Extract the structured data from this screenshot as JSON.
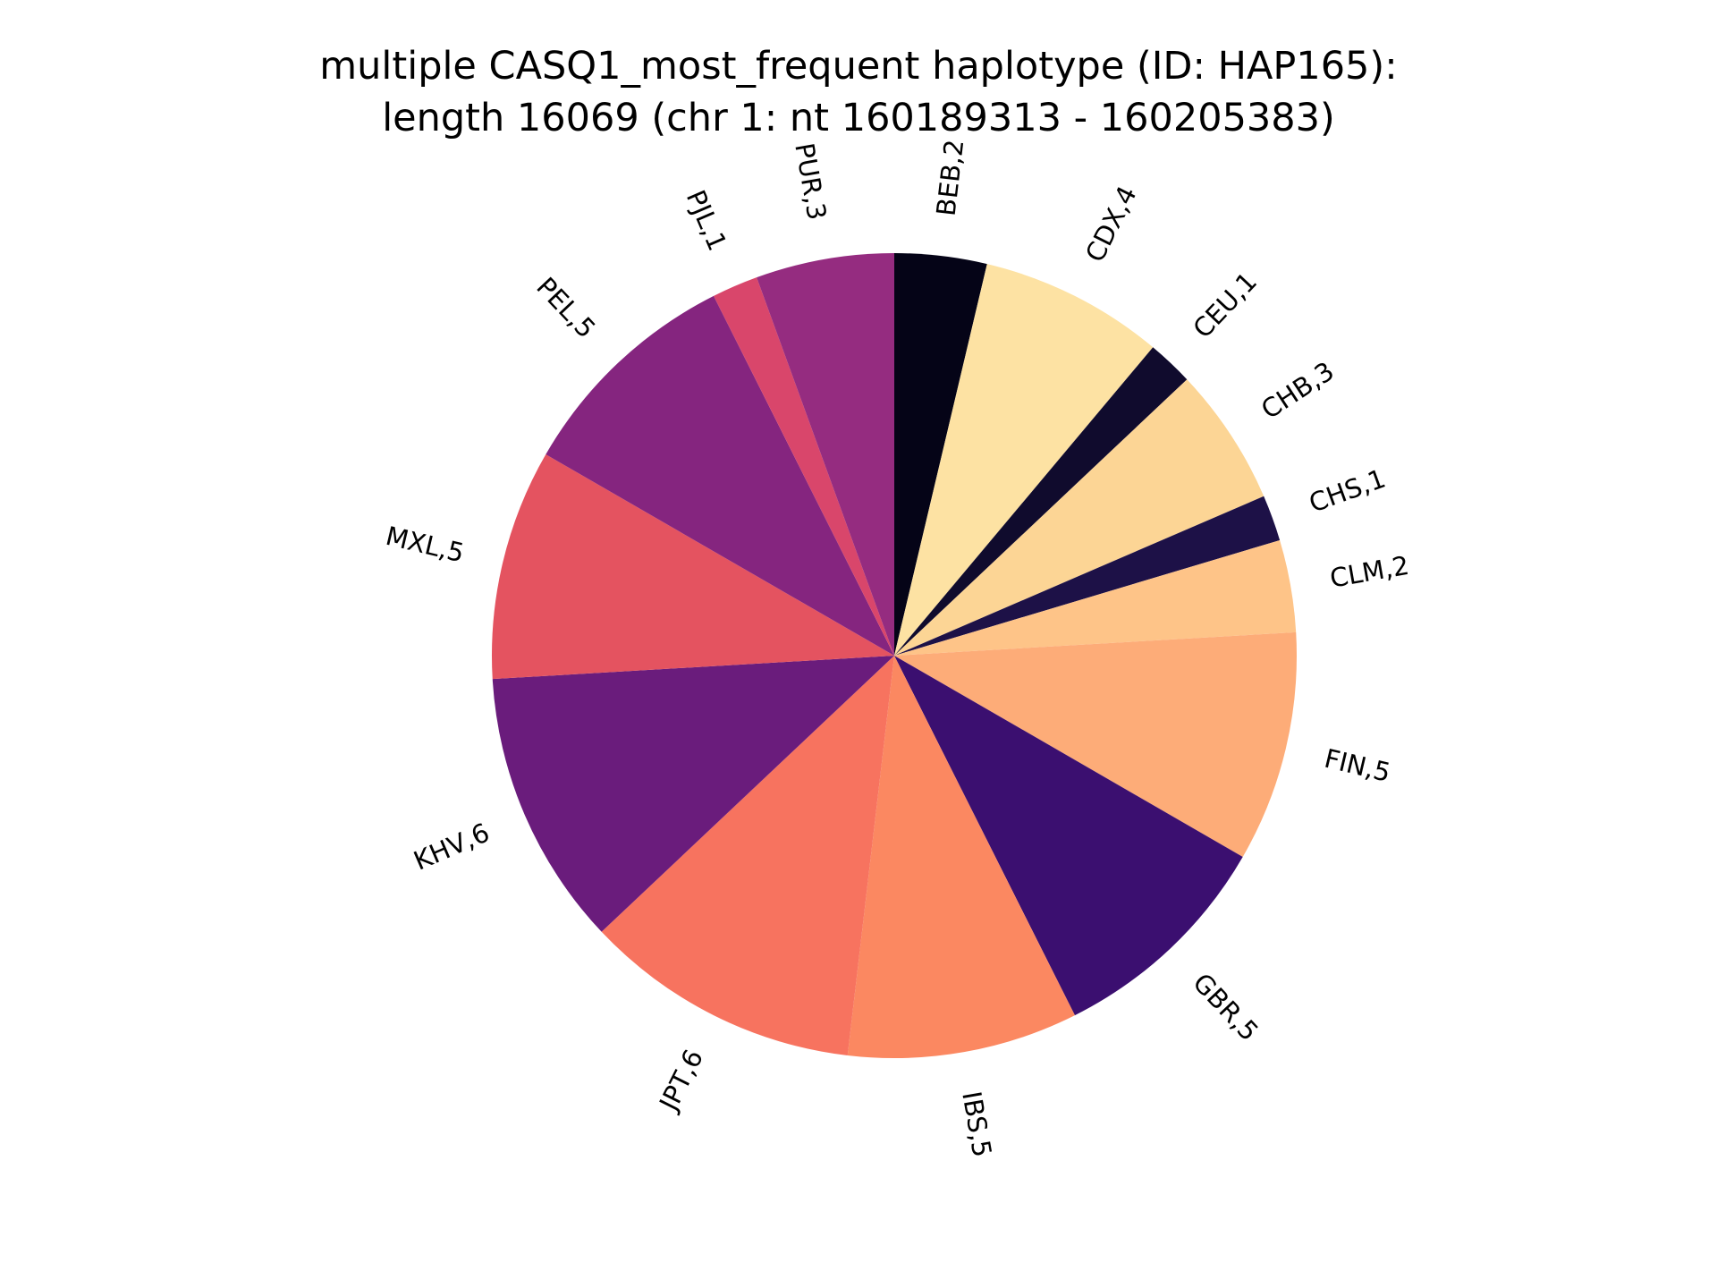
{
  "chart_data": {
    "type": "pie",
    "title": "multiple CASQ1_most_frequent haplotype (ID: HAP165):",
    "subtitle": "length 16069 (chr 1: nt 160189313 - 160205383)",
    "start_angle_deg": 90,
    "direction": "clockwise",
    "slices": [
      {
        "label": "BEB,2",
        "value": 2,
        "color": "#050417"
      },
      {
        "label": "CDX,4",
        "value": 4,
        "color": "#fde2a3"
      },
      {
        "label": "CEU,1",
        "value": 1,
        "color": "#100b2d"
      },
      {
        "label": "CHB,3",
        "value": 3,
        "color": "#fcd595"
      },
      {
        "label": "CHS,1",
        "value": 1,
        "color": "#1d1147"
      },
      {
        "label": "CLM,2",
        "value": 2,
        "color": "#fec488"
      },
      {
        "label": "FIN,5",
        "value": 5,
        "color": "#fdac78"
      },
      {
        "label": "GBR,5",
        "value": 5,
        "color": "#3b0f70"
      },
      {
        "label": "IBS,5",
        "value": 5,
        "color": "#fb8861"
      },
      {
        "label": "JPT,6",
        "value": 6,
        "color": "#f7735f"
      },
      {
        "label": "KHV,6",
        "value": 6,
        "color": "#6a1c7c"
      },
      {
        "label": "MXL,5",
        "value": 5,
        "color": "#e45360"
      },
      {
        "label": "PEL,5",
        "value": 5,
        "color": "#85257f"
      },
      {
        "label": "PJL,1",
        "value": 1,
        "color": "#d9466b"
      },
      {
        "label": "PUR,3",
        "value": 3,
        "color": "#952c80"
      }
    ]
  }
}
